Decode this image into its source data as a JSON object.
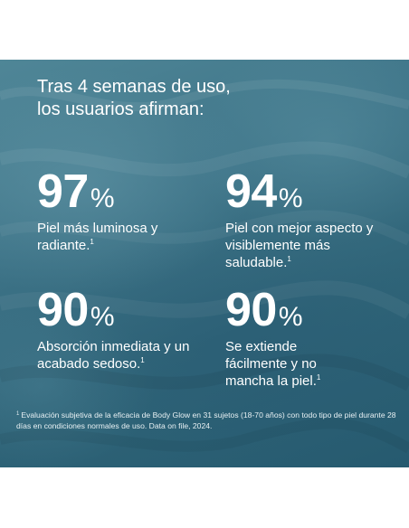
{
  "headline": {
    "line1": "Tras 4 semanas de uso,",
    "line2": "los usuarios afirman:"
  },
  "stats": [
    {
      "value": "97",
      "unit": "%",
      "text": "Piel más luminosa y radiante.",
      "footnote_mark": "1"
    },
    {
      "value": "94",
      "unit": "%",
      "text": "Piel con mejor aspecto y visiblemente más saludable.",
      "footnote_mark": "1"
    },
    {
      "value": "90",
      "unit": "%",
      "text": "Absorción inmediata y un acabado sedoso.",
      "footnote_mark": "1"
    },
    {
      "value": "90",
      "unit": "%",
      "text": "Se extiende fácilmente y no mancha la piel.",
      "footnote_mark": "1"
    }
  ],
  "footnote": {
    "mark": "1",
    "text": "Evaluación subjetiva de la eficacia de Body Glow en 31 sujetos (18-70 años) con todo tipo de piel durante 28 días en condiciones normales de uso.  Data on file, 2024."
  },
  "colors": {
    "background": "#ffffff",
    "panel": "#3e7488",
    "text": "#ffffff"
  }
}
